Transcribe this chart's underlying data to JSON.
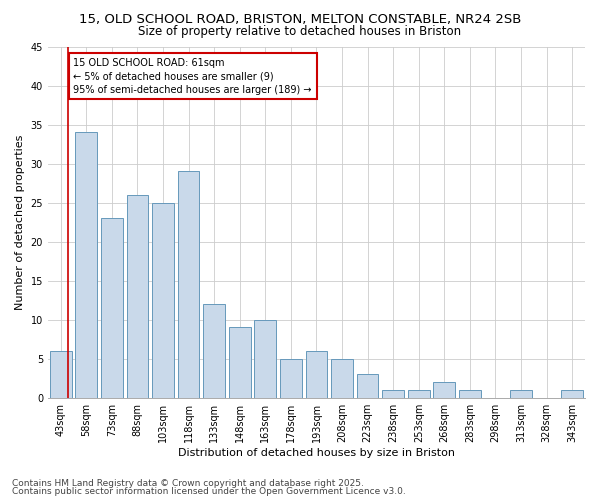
{
  "title1": "15, OLD SCHOOL ROAD, BRISTON, MELTON CONSTABLE, NR24 2SB",
  "title2": "Size of property relative to detached houses in Briston",
  "xlabel": "Distribution of detached houses by size in Briston",
  "ylabel": "Number of detached properties",
  "categories": [
    "43sqm",
    "58sqm",
    "73sqm",
    "88sqm",
    "103sqm",
    "118sqm",
    "133sqm",
    "148sqm",
    "163sqm",
    "178sqm",
    "193sqm",
    "208sqm",
    "223sqm",
    "238sqm",
    "253sqm",
    "268sqm",
    "283sqm",
    "298sqm",
    "313sqm",
    "328sqm",
    "343sqm"
  ],
  "values": [
    6,
    34,
    23,
    26,
    25,
    29,
    12,
    9,
    10,
    5,
    6,
    5,
    3,
    1,
    1,
    2,
    1,
    0,
    1,
    0,
    1
  ],
  "bar_color": "#c9d9ea",
  "bar_edge_color": "#6699bb",
  "vline_color": "#cc0000",
  "vline_x": 0.27,
  "annotation_text": "15 OLD SCHOOL ROAD: 61sqm\n← 5% of detached houses are smaller (9)\n95% of semi-detached houses are larger (189) →",
  "annotation_box_color": "#cc0000",
  "ylim": [
    0,
    45
  ],
  "yticks": [
    0,
    5,
    10,
    15,
    20,
    25,
    30,
    35,
    40,
    45
  ],
  "grid_color": "#cccccc",
  "background_color": "#ffffff",
  "footer1": "Contains HM Land Registry data © Crown copyright and database right 2025.",
  "footer2": "Contains public sector information licensed under the Open Government Licence v3.0.",
  "title_fontsize": 9.5,
  "subtitle_fontsize": 8.5,
  "axis_label_fontsize": 8,
  "tick_fontsize": 7,
  "footer_fontsize": 6.5
}
